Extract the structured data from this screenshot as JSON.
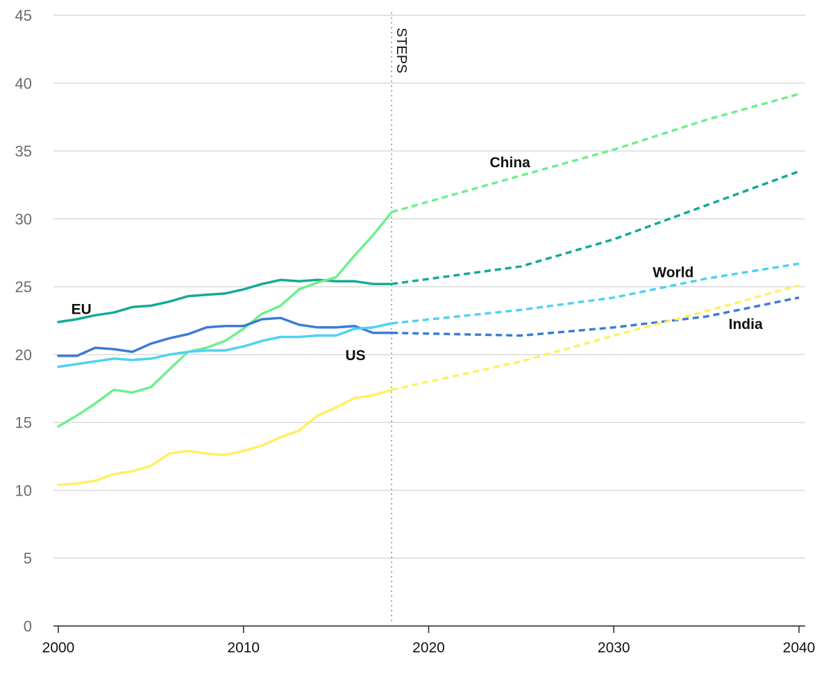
{
  "chart_data": {
    "type": "line",
    "title": "",
    "xlabel": "",
    "ylabel": "",
    "xlim": [
      2000,
      2040
    ],
    "ylim": [
      0,
      45
    ],
    "x_ticks": [
      "2000",
      "2010",
      "2020",
      "2030",
      "2040"
    ],
    "y_ticks": [
      "0",
      "5",
      "10",
      "15",
      "20",
      "25",
      "30",
      "35",
      "40",
      "45"
    ],
    "grid": "horizontal",
    "legend": "none (direct labels)",
    "projection_marker": {
      "year": 2018,
      "label": "STEPS"
    },
    "series": [
      {
        "name": "EU",
        "color": "#14a99a",
        "historical": [
          [
            2000,
            22.4
          ],
          [
            2001,
            22.6
          ],
          [
            2002,
            22.9
          ],
          [
            2003,
            23.1
          ],
          [
            2004,
            23.5
          ],
          [
            2005,
            23.6
          ],
          [
            2006,
            23.9
          ],
          [
            2007,
            24.3
          ],
          [
            2008,
            24.4
          ],
          [
            2009,
            24.5
          ],
          [
            2010,
            24.8
          ],
          [
            2011,
            25.2
          ],
          [
            2012,
            25.5
          ],
          [
            2013,
            25.4
          ],
          [
            2014,
            25.5
          ],
          [
            2015,
            25.4
          ],
          [
            2016,
            25.4
          ],
          [
            2017,
            25.2
          ],
          [
            2018,
            25.2
          ]
        ],
        "projected": [
          [
            2018,
            25.2
          ],
          [
            2025,
            26.5
          ],
          [
            2030,
            28.5
          ],
          [
            2035,
            31.0
          ],
          [
            2040,
            33.5
          ]
        ]
      },
      {
        "name": "China",
        "color": "#6cf08c",
        "historical": [
          [
            2000,
            14.7
          ],
          [
            2001,
            15.5
          ],
          [
            2002,
            16.4
          ],
          [
            2003,
            17.4
          ],
          [
            2004,
            17.2
          ],
          [
            2005,
            17.6
          ],
          [
            2006,
            18.9
          ],
          [
            2007,
            20.2
          ],
          [
            2008,
            20.5
          ],
          [
            2009,
            21.0
          ],
          [
            2010,
            21.9
          ],
          [
            2011,
            23.0
          ],
          [
            2012,
            23.6
          ],
          [
            2013,
            24.8
          ],
          [
            2014,
            25.3
          ],
          [
            2015,
            25.7
          ],
          [
            2016,
            27.3
          ],
          [
            2017,
            28.8
          ],
          [
            2018,
            30.5
          ]
        ],
        "projected": [
          [
            2018,
            30.5
          ],
          [
            2025,
            33.2
          ],
          [
            2030,
            35.1
          ],
          [
            2035,
            37.3
          ],
          [
            2040,
            39.2
          ]
        ]
      },
      {
        "name": "US",
        "color": "#3c7bd6",
        "historical": [
          [
            2000,
            19.9
          ],
          [
            2001,
            19.9
          ],
          [
            2002,
            20.5
          ],
          [
            2003,
            20.4
          ],
          [
            2004,
            20.2
          ],
          [
            2005,
            20.8
          ],
          [
            2006,
            21.2
          ],
          [
            2007,
            21.5
          ],
          [
            2008,
            22.0
          ],
          [
            2009,
            22.1
          ],
          [
            2010,
            22.1
          ],
          [
            2011,
            22.6
          ],
          [
            2012,
            22.7
          ],
          [
            2013,
            22.2
          ],
          [
            2014,
            22.0
          ],
          [
            2015,
            22.0
          ],
          [
            2016,
            22.1
          ],
          [
            2017,
            21.6
          ],
          [
            2018,
            21.6
          ]
        ],
        "projected": [
          [
            2018,
            21.6
          ],
          [
            2025,
            21.4
          ],
          [
            2030,
            22.0
          ],
          [
            2035,
            22.8
          ],
          [
            2040,
            24.2
          ]
        ]
      },
      {
        "name": "World",
        "color": "#4fd1f3",
        "historical": [
          [
            2000,
            19.1
          ],
          [
            2001,
            19.3
          ],
          [
            2002,
            19.5
          ],
          [
            2003,
            19.7
          ],
          [
            2004,
            19.6
          ],
          [
            2005,
            19.7
          ],
          [
            2006,
            20.0
          ],
          [
            2007,
            20.2
          ],
          [
            2008,
            20.3
          ],
          [
            2009,
            20.3
          ],
          [
            2010,
            20.6
          ],
          [
            2011,
            21.0
          ],
          [
            2012,
            21.3
          ],
          [
            2013,
            21.3
          ],
          [
            2014,
            21.4
          ],
          [
            2015,
            21.4
          ],
          [
            2016,
            21.9
          ],
          [
            2017,
            22.0
          ],
          [
            2018,
            22.3
          ]
        ],
        "projected": [
          [
            2018,
            22.3
          ],
          [
            2025,
            23.3
          ],
          [
            2030,
            24.2
          ],
          [
            2035,
            25.6
          ],
          [
            2040,
            26.7
          ]
        ]
      },
      {
        "name": "India",
        "color": "#fff060",
        "historical": [
          [
            2000,
            10.4
          ],
          [
            2001,
            10.5
          ],
          [
            2002,
            10.7
          ],
          [
            2003,
            11.2
          ],
          [
            2004,
            11.4
          ],
          [
            2005,
            11.8
          ],
          [
            2006,
            12.7
          ],
          [
            2007,
            12.9
          ],
          [
            2008,
            12.7
          ],
          [
            2009,
            12.6
          ],
          [
            2010,
            12.9
          ],
          [
            2011,
            13.3
          ],
          [
            2012,
            13.9
          ],
          [
            2013,
            14.4
          ],
          [
            2014,
            15.5
          ],
          [
            2015,
            16.1
          ],
          [
            2016,
            16.8
          ],
          [
            2017,
            17.0
          ],
          [
            2018,
            17.4
          ]
        ],
        "projected": [
          [
            2018,
            17.4
          ],
          [
            2025,
            19.5
          ],
          [
            2030,
            21.4
          ],
          [
            2035,
            23.2
          ],
          [
            2040,
            25.1
          ]
        ]
      }
    ]
  }
}
